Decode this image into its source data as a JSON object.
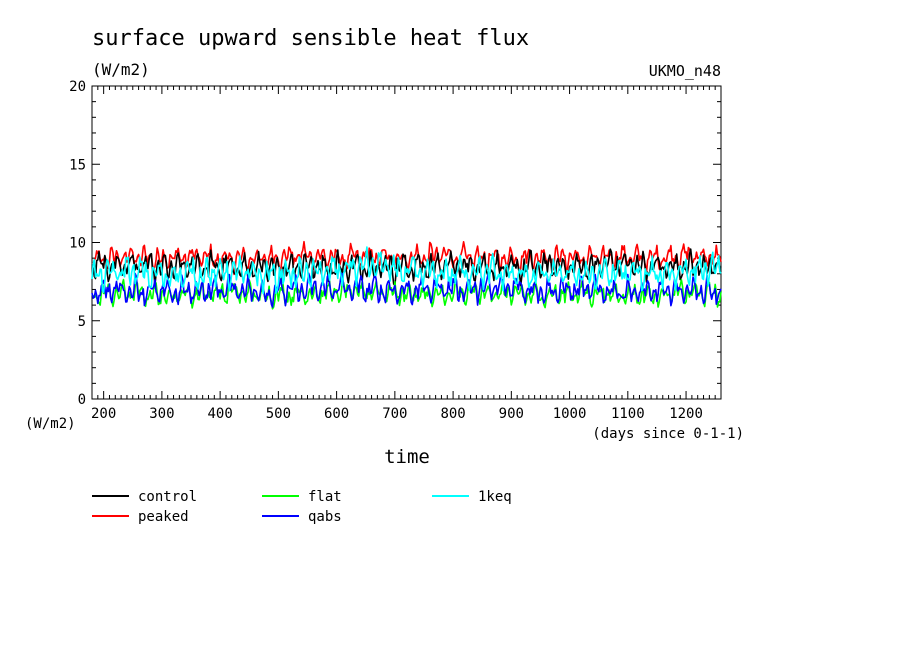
{
  "chart_data": {
    "type": "line",
    "title": "surface upward sensible heat flux",
    "units_label": "(W/m2)",
    "source_label": "UKMO_n48",
    "ylabel": "(W/m2)",
    "xlabel": "time",
    "xunits": "(days since 0-1-1)",
    "xlim": [
      180,
      1260
    ],
    "ylim": [
      0,
      20
    ],
    "xticks": [
      200,
      300,
      400,
      500,
      600,
      700,
      800,
      900,
      1000,
      1100,
      1200
    ],
    "xtick_labels": [
      "200",
      "300",
      "400",
      "500",
      "600",
      "700",
      "800",
      "900",
      "1000",
      "1100",
      "1200"
    ],
    "yticks": [
      0,
      5,
      10,
      15,
      20
    ],
    "ytick_labels": [
      "0",
      "5",
      "10",
      "15",
      "20"
    ],
    "legend_position": "bottom-left, below plot",
    "series": [
      {
        "name": "control",
        "color": "#000000",
        "x": [
          180,
          240,
          300,
          360,
          420,
          480,
          540,
          600,
          660,
          720,
          780,
          840,
          900,
          960,
          1020,
          1080,
          1140,
          1200,
          1260
        ],
        "values": [
          8.4,
          8.6,
          8.3,
          8.5,
          8.4,
          8.3,
          8.6,
          8.4,
          8.5,
          8.4,
          8.5,
          8.5,
          8.3,
          8.5,
          8.4,
          8.7,
          8.4,
          8.5,
          8.4
        ]
      },
      {
        "name": "peaked",
        "color": "#ff0000",
        "x": [
          180,
          240,
          300,
          360,
          420,
          480,
          540,
          600,
          660,
          720,
          780,
          840,
          900,
          960,
          1020,
          1080,
          1140,
          1200,
          1260
        ],
        "values": [
          8.8,
          9.1,
          9.0,
          9.1,
          8.9,
          9.0,
          9.2,
          9.0,
          9.1,
          9.0,
          9.2,
          9.0,
          9.0,
          9.1,
          9.0,
          9.1,
          9.0,
          9.2,
          9.0
        ]
      },
      {
        "name": "flat",
        "color": "#00ff00",
        "x": [
          180,
          240,
          300,
          360,
          420,
          480,
          540,
          600,
          660,
          720,
          780,
          840,
          900,
          960,
          1020,
          1080,
          1140,
          1200,
          1260
        ],
        "values": [
          6.6,
          6.8,
          6.6,
          6.7,
          6.8,
          6.6,
          6.7,
          6.8,
          6.9,
          6.7,
          6.6,
          6.8,
          6.7,
          6.6,
          6.8,
          6.7,
          6.6,
          6.8,
          6.7
        ]
      },
      {
        "name": "qabs",
        "color": "#0000ff",
        "x": [
          180,
          240,
          300,
          360,
          420,
          480,
          540,
          600,
          660,
          720,
          780,
          840,
          900,
          960,
          1020,
          1080,
          1140,
          1200,
          1260
        ],
        "values": [
          6.9,
          7.0,
          6.8,
          6.9,
          7.1,
          6.8,
          7.0,
          7.1,
          7.0,
          6.9,
          7.1,
          7.0,
          7.2,
          6.9,
          7.0,
          6.9,
          6.8,
          7.0,
          6.8
        ]
      },
      {
        "name": "1keq",
        "color": "#00ffff",
        "x": [
          180,
          240,
          300,
          360,
          420,
          480,
          540,
          600,
          660,
          720,
          780,
          840,
          900,
          960,
          1020,
          1080,
          1140,
          1200,
          1260
        ],
        "values": [
          7.8,
          8.2,
          7.9,
          8.0,
          8.1,
          7.9,
          8.0,
          8.2,
          8.6,
          8.1,
          8.0,
          8.2,
          7.9,
          8.0,
          7.9,
          8.1,
          7.9,
          8.2,
          8.3
        ]
      }
    ]
  }
}
